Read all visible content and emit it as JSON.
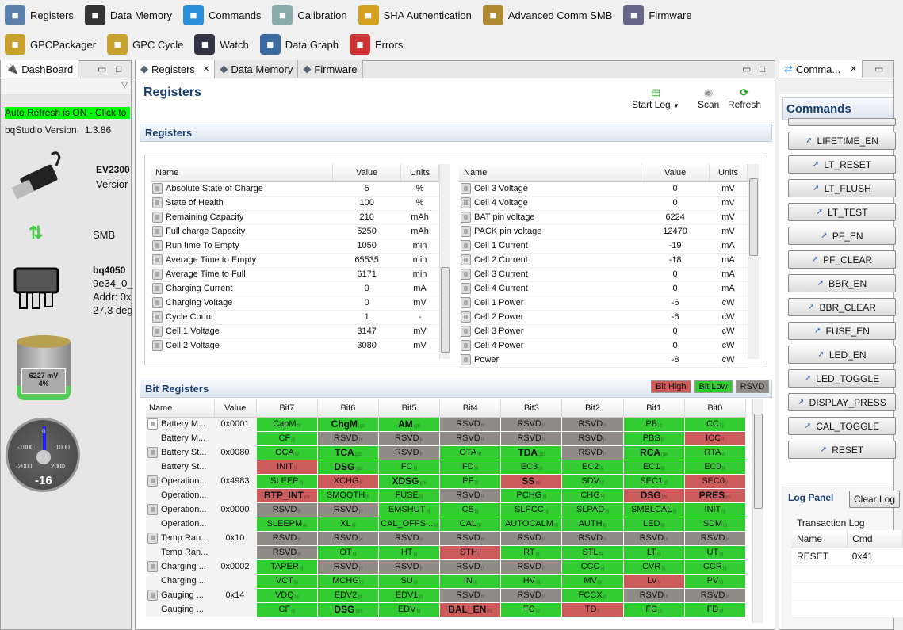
{
  "toolbar": {
    "row1": [
      {
        "label": "Registers",
        "icon": "gear-icon",
        "color": "#5a7fa8"
      },
      {
        "label": "Data Memory",
        "icon": "chip-icon",
        "color": "#333"
      },
      {
        "label": "Commands",
        "icon": "refresh-arrows-icon",
        "color": "#2a8fd8"
      },
      {
        "label": "Calibration",
        "icon": "magnifier-icon",
        "color": "#8aa"
      },
      {
        "label": "SHA Authentication",
        "icon": "key-lock-icon",
        "color": "#d4a020"
      },
      {
        "label": "Advanced Comm SMB",
        "icon": "toolbox-icon",
        "color": "#b08a30"
      },
      {
        "label": "Firmware",
        "icon": "circuit-board-icon",
        "color": "#668"
      }
    ],
    "row2": [
      {
        "label": "GPCPackager",
        "icon": "package-icon",
        "color": "#c8a030"
      },
      {
        "label": "GPC Cycle",
        "icon": "cycle-icon",
        "color": "#c8a030"
      },
      {
        "label": "Watch",
        "icon": "book-icon",
        "color": "#334"
      },
      {
        "label": "Data Graph",
        "icon": "graph-icon",
        "color": "#3a6aa0"
      },
      {
        "label": "Errors",
        "icon": "error-icon",
        "color": "#c33"
      }
    ]
  },
  "dashboard": {
    "tab": "DashBoard",
    "auto_refresh": "Auto Refresh is ON - Click to",
    "version_label": "bqStudio Version:",
    "version": "1.3.86",
    "adapter": "EV2300",
    "adapter_version": "Versior",
    "protocol": "SMB",
    "device": "bq4050",
    "device_fw": "9e34_0_",
    "addr": "Addr: 0x",
    "temp": "27.3 deg",
    "battery_mv": "6227 mV",
    "battery_pct": "4%",
    "battery_fill": 0.04,
    "gauge": {
      "value": "-16",
      "ticks": [
        "-2000",
        "-1000",
        "0",
        "1000",
        "2000"
      ]
    }
  },
  "center": {
    "tabs": [
      "Registers",
      "Data Memory",
      "Firmware"
    ],
    "title": "Registers",
    "start_log": "Start Log",
    "scan": "Scan",
    "refresh": "Refresh",
    "section": "Registers",
    "bit_section": "Bit Registers",
    "legend": {
      "high": "Bit High",
      "low": "Bit Low",
      "rsvd": "RSVD"
    },
    "reg_headers": [
      "Name",
      "Value",
      "Units"
    ],
    "reg_left": [
      [
        "Absolute State of Charge",
        "5",
        "%"
      ],
      [
        "State of Health",
        "100",
        "%"
      ],
      [
        "Remaining Capacity",
        "210",
        "mAh"
      ],
      [
        "Full charge Capacity",
        "5250",
        "mAh"
      ],
      [
        "Run time To Empty",
        "1050",
        "min"
      ],
      [
        "Average Time to Empty",
        "65535",
        "min"
      ],
      [
        "Average Time to Full",
        "6171",
        "min"
      ],
      [
        "Charging Current",
        "0",
        "mA"
      ],
      [
        "Charging Voltage",
        "0",
        "mV"
      ],
      [
        "Cycle Count",
        "1",
        "-"
      ],
      [
        "Cell 1 Voltage",
        "3147",
        "mV"
      ],
      [
        "Cell 2 Voltage",
        "3080",
        "mV"
      ]
    ],
    "reg_right": [
      [
        "Cell 3 Voltage",
        "0",
        "mV"
      ],
      [
        "Cell 4 Voltage",
        "0",
        "mV"
      ],
      [
        "BAT pin voltage",
        "6224",
        "mV"
      ],
      [
        "PACK pin voltage",
        "12470",
        "mV"
      ],
      [
        "Cell 1 Current",
        "-19",
        "mA"
      ],
      [
        "Cell 2 Current",
        "-18",
        "mA"
      ],
      [
        "Cell 3 Current",
        "0",
        "mA"
      ],
      [
        "Cell 4 Current",
        "0",
        "mA"
      ],
      [
        "Cell 1 Power",
        "-6",
        "cW"
      ],
      [
        "Cell 2 Power",
        "-6",
        "cW"
      ],
      [
        "Cell 3 Power",
        "0",
        "cW"
      ],
      [
        "Cell 4 Power",
        "0",
        "cW"
      ],
      [
        "Power",
        "-8",
        "cW"
      ]
    ],
    "bit_headers": [
      "Name",
      "Value",
      "Bit7",
      "Bit6",
      "Bit5",
      "Bit4",
      "Bit3",
      "Bit2",
      "Bit1",
      "Bit0"
    ],
    "bit_rows": [
      {
        "name": "Battery M...",
        "value": "0x0001",
        "icon": "edit",
        "bits": [
          "CapM|g",
          "ChgM|gb",
          "AM|gb",
          "RSVD|x",
          "RSVD|x",
          "RSVD|x",
          "PB|g",
          "CC|g"
        ]
      },
      {
        "name": "Battery M...",
        "value": "",
        "bits": [
          "CF|g",
          "RSVD|x",
          "RSVD|x",
          "RSVD|x",
          "RSVD|x",
          "RSVD|x",
          "PBS|g",
          "ICC|r"
        ]
      },
      {
        "name": "Battery St...",
        "value": "0x0080",
        "icon": "lock",
        "bits": [
          "OCA|g",
          "TCA|gb",
          "RSVD|x",
          "OTA|g",
          "TDA|gb",
          "RSVD|x",
          "RCA|gb",
          "RTA|g"
        ]
      },
      {
        "name": "Battery St...",
        "value": "",
        "bits": [
          "INIT|r",
          "DSG|gb",
          "FC|g",
          "FD|g",
          "EC3|g",
          "EC2|g",
          "EC1|g",
          "EC0|g"
        ]
      },
      {
        "name": "Operation...",
        "value": "0x4983",
        "icon": "lock",
        "bits": [
          "SLEEP|g",
          "XCHG|r",
          "XDSG|gb",
          "PF|g",
          "SS|rb",
          "SDV|g",
          "SEC1|g",
          "SEC0|r"
        ]
      },
      {
        "name": "Operation...",
        "value": "",
        "bits": [
          "BTP_INT|rb",
          "SMOOTH|g",
          "FUSE|g",
          "RSVD|x",
          "PCHG|g",
          "CHG|g",
          "DSG|rb",
          "PRES|rb"
        ]
      },
      {
        "name": "Operation...",
        "value": "0x0000",
        "icon": "lock",
        "bits": [
          "RSVD|x",
          "RSVD|x",
          "EMSHUT|g",
          "CB|g",
          "SLPCC|g",
          "SLPAD|g",
          "SMBLCAL|g",
          "INIT|g"
        ]
      },
      {
        "name": "Operation...",
        "value": "",
        "bits": [
          "SLEEPM|g",
          "XL|g",
          "CAL_OFFS...|g",
          "CAL|g",
          "AUTOCALM|g",
          "AUTH|g",
          "LED|g",
          "SDM|g"
        ]
      },
      {
        "name": "Temp Ran...",
        "value": "0x10",
        "icon": "lock",
        "bits": [
          "RSVD|x",
          "RSVD|x",
          "RSVD|x",
          "RSVD|x",
          "RSVD|x",
          "RSVD|x",
          "RSVD|x",
          "RSVD|x"
        ]
      },
      {
        "name": "Temp Ran...",
        "value": "",
        "bits": [
          "RSVD|x",
          "OT|g",
          "HT|g",
          "STH|r",
          "RT|g",
          "STL|g",
          "LT|g",
          "UT|g"
        ]
      },
      {
        "name": "Charging ...",
        "value": "0x0002",
        "icon": "lock",
        "bits": [
          "TAPER|g",
          "RSVD|x",
          "RSVD|x",
          "RSVD|x",
          "RSVD|x",
          "CCC|g",
          "CVR|g",
          "CCR|g"
        ]
      },
      {
        "name": "Charging ...",
        "value": "",
        "bits": [
          "VCT|g",
          "MCHG|g",
          "SU|g",
          "IN|g",
          "HV|g",
          "MV|g",
          "LV|r",
          "PV|g"
        ]
      },
      {
        "name": "Gauging ...",
        "value": "0x14",
        "icon": "lock",
        "bits": [
          "VDQ|g",
          "EDV2|g",
          "EDV1|g",
          "RSVD|x",
          "RSVD|x",
          "FCCX|g",
          "RSVD|x",
          "RSVD|x"
        ]
      },
      {
        "name": "Gauging ...",
        "value": "",
        "bits": [
          "CF|g",
          "DSG|gb",
          "EDV|g",
          "BAL_EN|rb",
          "TC|g",
          "TD|r",
          "FC|g",
          "FD|g"
        ]
      }
    ]
  },
  "commands": {
    "tab": "Comma...",
    "title": "Commands",
    "buttons": [
      "LIFETIME_EN",
      "LT_RESET",
      "LT_FLUSH",
      "LT_TEST",
      "PF_EN",
      "PF_CLEAR",
      "BBR_EN",
      "BBR_CLEAR",
      "FUSE_EN",
      "LED_EN",
      "LED_TOGGLE",
      "DISPLAY_PRESS",
      "CAL_TOGGLE",
      "RESET"
    ],
    "log_panel": "Log Panel",
    "clear_log": "Clear Log",
    "transaction_log": "Transaction Log",
    "log_headers": [
      "Name",
      "Cmd"
    ],
    "log_rows": [
      [
        "RESET",
        "0x41"
      ]
    ]
  },
  "colors": {
    "high": "#cc5b5b",
    "low": "#33cc33",
    "rsvd": "#8e8c84",
    "auto_refresh": "#00ff00",
    "title": "#1a3f6e"
  }
}
